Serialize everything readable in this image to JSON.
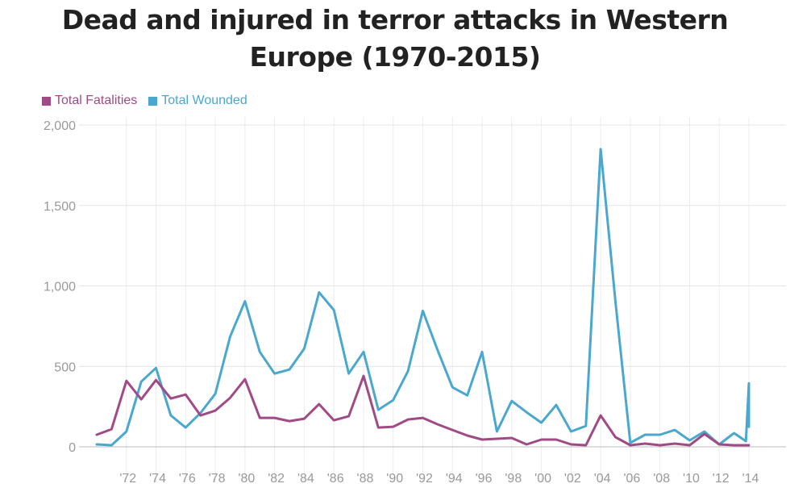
{
  "chart_data": {
    "type": "line",
    "title": "Dead and injured in terror attacks in Western Europe (1970-2015)",
    "title_lines": [
      "Dead and injured in terror attacks in Western",
      "Europe (1970-2015)"
    ],
    "ylim": [
      0,
      2000
    ],
    "yticks": [
      0,
      500,
      1000,
      1500,
      2000
    ],
    "ytick_labels": [
      "0",
      "500",
      "1,000",
      "1,500",
      "2,000"
    ],
    "xlim": [
      1970,
      2014
    ],
    "xticks": [
      1972,
      1974,
      1976,
      1978,
      1980,
      1982,
      1984,
      1986,
      1988,
      1990,
      1992,
      1994,
      1996,
      1998,
      2000,
      2002,
      2004,
      2006,
      2008,
      2010,
      2012,
      2014
    ],
    "xtick_labels": [
      "'72",
      "'74",
      "'76",
      "'78",
      "'80",
      "'82",
      "'84",
      "'86",
      "'88",
      "'90",
      "'92",
      "'94",
      "'96",
      "'98",
      "'00",
      "'02",
      "'04",
      "'06",
      "'08",
      "'10",
      "'12",
      "'14"
    ],
    "legend_position": "top-left",
    "grid": true,
    "series": [
      {
        "name": "Total Fatalities",
        "color": "#a04a86",
        "points": [
          [
            1970,
            75
          ],
          [
            1971,
            110
          ],
          [
            1972,
            410
          ],
          [
            1973,
            295
          ],
          [
            1974,
            415
          ],
          [
            1975,
            300
          ],
          [
            1976,
            325
          ],
          [
            1977,
            195
          ],
          [
            1978,
            225
          ],
          [
            1979,
            305
          ],
          [
            1980,
            420
          ],
          [
            1981,
            180
          ],
          [
            1982,
            180
          ],
          [
            1983,
            160
          ],
          [
            1984,
            175
          ],
          [
            1985,
            265
          ],
          [
            1986,
            165
          ],
          [
            1987,
            190
          ],
          [
            1988,
            440
          ],
          [
            1989,
            120
          ],
          [
            1990,
            125
          ],
          [
            1991,
            170
          ],
          [
            1992,
            180
          ],
          [
            1993,
            140
          ],
          [
            1994,
            105
          ],
          [
            1995,
            70
          ],
          [
            1996,
            45
          ],
          [
            1997,
            50
          ],
          [
            1998,
            55
          ],
          [
            1999,
            15
          ],
          [
            2000,
            45
          ],
          [
            2001,
            45
          ],
          [
            2002,
            15
          ],
          [
            2003,
            10
          ],
          [
            2004,
            195
          ],
          [
            2005,
            60
          ],
          [
            2006,
            10
          ],
          [
            2007,
            20
          ],
          [
            2008,
            10
          ],
          [
            2009,
            20
          ],
          [
            2010,
            10
          ],
          [
            2011,
            80
          ],
          [
            2012,
            15
          ],
          [
            2013,
            10
          ],
          [
            2014,
            10
          ]
        ]
      },
      {
        "name": "Total Wounded",
        "color": "#4aa8cf",
        "points": [
          [
            1970,
            15
          ],
          [
            1971,
            10
          ],
          [
            1972,
            95
          ],
          [
            1973,
            405
          ],
          [
            1974,
            490
          ],
          [
            1975,
            195
          ],
          [
            1976,
            120
          ],
          [
            1977,
            210
          ],
          [
            1978,
            330
          ],
          [
            1979,
            685
          ],
          [
            1980,
            905
          ],
          [
            1981,
            590
          ],
          [
            1982,
            455
          ],
          [
            1983,
            480
          ],
          [
            1984,
            610
          ],
          [
            1985,
            960
          ],
          [
            1986,
            850
          ],
          [
            1987,
            455
          ],
          [
            1988,
            590
          ],
          [
            1989,
            230
          ],
          [
            1990,
            290
          ],
          [
            1991,
            470
          ],
          [
            1992,
            845
          ],
          [
            1993,
            600
          ],
          [
            1994,
            370
          ],
          [
            1995,
            320
          ],
          [
            1996,
            590
          ],
          [
            1997,
            95
          ],
          [
            1998,
            285
          ],
          [
            1999,
            215
          ],
          [
            2000,
            150
          ],
          [
            2001,
            260
          ],
          [
            2002,
            95
          ],
          [
            2003,
            130
          ],
          [
            2004,
            1850
          ],
          [
            2005,
            900
          ],
          [
            2006,
            25
          ],
          [
            2007,
            75
          ],
          [
            2008,
            75
          ],
          [
            2009,
            105
          ],
          [
            2010,
            40
          ],
          [
            2011,
            95
          ],
          [
            2012,
            15
          ],
          [
            2013,
            85
          ],
          [
            2013.8,
            35
          ],
          [
            2014,
            395
          ],
          [
            2014,
            125
          ]
        ]
      }
    ]
  }
}
